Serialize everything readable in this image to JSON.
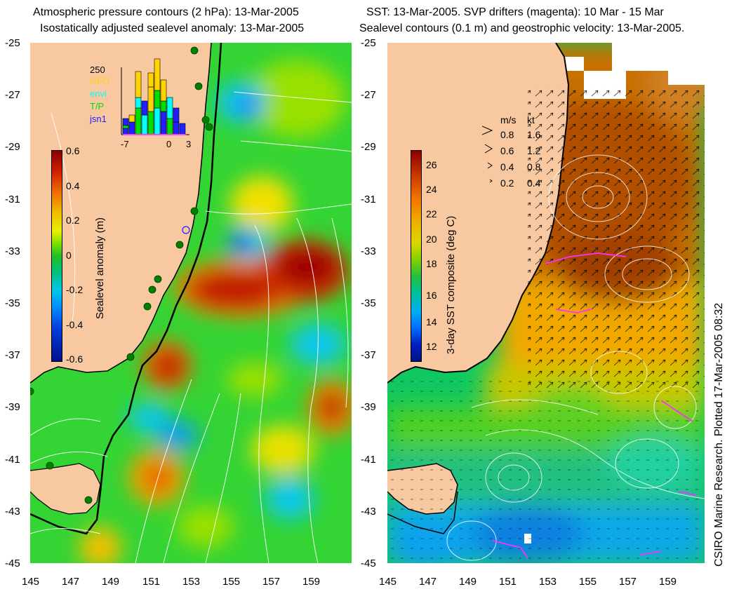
{
  "left_panel": {
    "title_line1": "Atmospheric pressure contours (2 hPa): 13-Mar-2005",
    "title_line2": "Isostatically adjusted sealevel anomaly: 13-Mar-2005",
    "colorbar_label": "Sealevel anomaly (m)",
    "colorbar_ticks": [
      "0.6",
      "0.4",
      "0.2",
      "0",
      "-0.2",
      "-0.4",
      "-0.6"
    ],
    "histogram": {
      "ymax_label": "250",
      "x_ticks": [
        "-7",
        "0",
        "3"
      ],
      "legend": [
        {
          "name": "GFO",
          "color": "#ffd400"
        },
        {
          "name": "envi",
          "color": "#00ffff"
        },
        {
          "name": "T/P",
          "color": "#00e000"
        },
        {
          "name": "jsn1",
          "color": "#2020ff"
        }
      ]
    }
  },
  "right_panel": {
    "title_line1": "SST: 13-Mar-2005. SVP drifters (magenta): 10 Mar - 15 Mar",
    "title_line2": "Sealevel contours (0.1 m) and geostrophic velocity: 13-Mar-2005.",
    "colorbar_label": "3-day SST composite (deg C)",
    "colorbar_ticks": [
      "26",
      "24",
      "22",
      "20",
      "18",
      "16",
      "14",
      "12"
    ],
    "speed_legend": {
      "header_ms": "m/s",
      "header_kt": "kt",
      "rows": [
        {
          "ms": "0.8",
          "kt": "1.6"
        },
        {
          "ms": "0.6",
          "kt": "1.2"
        },
        {
          "ms": "0.4",
          "kt": "0.8"
        },
        {
          "ms": "0.2",
          "kt": "0.4"
        }
      ]
    }
  },
  "axes": {
    "lat_ticks": [
      "-25",
      "-27",
      "-29",
      "-31",
      "-33",
      "-35",
      "-37",
      "-39",
      "-41",
      "-43",
      "-45"
    ],
    "lon_ticks": [
      "145",
      "147",
      "149",
      "151",
      "153",
      "155",
      "157",
      "159"
    ]
  },
  "credit": "CSIRO Marine Research. Plotted 17-Mar-2005 08:32",
  "colors": {
    "land": "#f8c8a0",
    "ocean_base": "#30d030",
    "coast": "#000000"
  }
}
